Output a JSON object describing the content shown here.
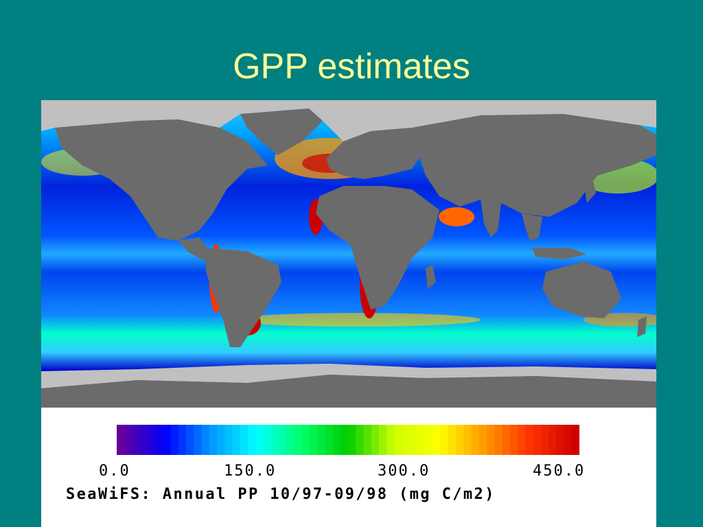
{
  "slide": {
    "title": "GPP estimates"
  },
  "map": {
    "caption": "SeaWiFS: Annual PP 10/97-09/98 (mg C/m2)",
    "colors": {
      "land": "#6b6b6b",
      "ice": "#c0c0c0",
      "ocean_low": "#0000cc",
      "ocean_mid": "#33ccff",
      "ocean_high": "#cc0000"
    }
  },
  "legend": {
    "ticks": [
      "0.0",
      "150.0",
      "300.0",
      "450.0"
    ],
    "range": [
      0,
      450
    ],
    "colors": [
      "#660099",
      "#0000ff",
      "#0099ff",
      "#00ffff",
      "#00ff66",
      "#00cc00",
      "#ccff00",
      "#ffff00",
      "#ff9900",
      "#ff3300",
      "#cc0000"
    ]
  }
}
